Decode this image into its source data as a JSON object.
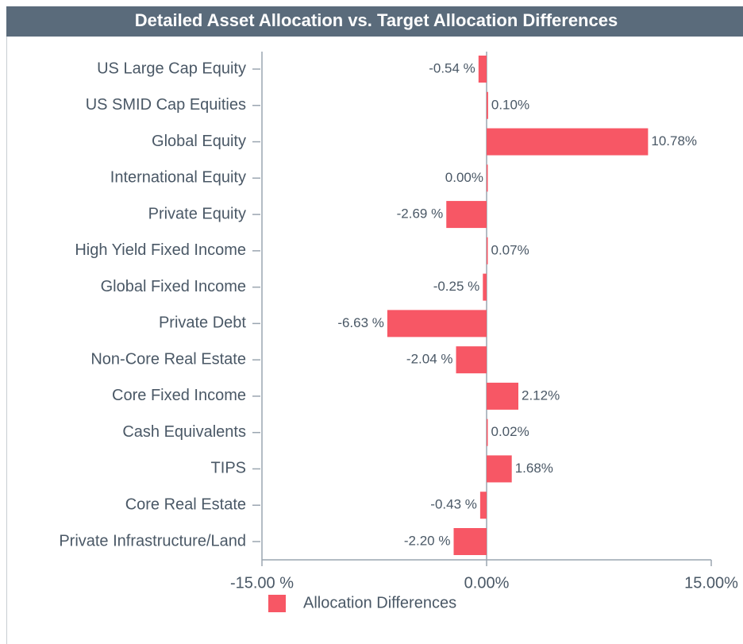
{
  "chart_data": {
    "type": "bar",
    "orientation": "horizontal",
    "title": "Detailed Asset Allocation vs. Target Allocation Differences",
    "categories": [
      "US Large Cap Equity",
      "US SMID Cap Equities",
      "Global Equity",
      "International Equity",
      "Private Equity",
      "High Yield Fixed Income",
      "Global Fixed Income",
      "Private Debt",
      "Non-Core Real Estate",
      "Core Fixed Income",
      "Cash Equivalents",
      "TIPS",
      "Core Real Estate",
      "Private Infrastructure/Land"
    ],
    "series": [
      {
        "name": "Allocation Differences",
        "color": "#f75765",
        "values": [
          -0.54,
          0.1,
          10.78,
          0.0,
          -2.69,
          0.07,
          -0.25,
          -6.63,
          -2.04,
          2.12,
          0.02,
          1.68,
          -0.43,
          -2.2
        ],
        "value_labels": [
          "-0.54 %",
          "0.10%",
          "10.78%",
          "0.00%",
          "-2.69 %",
          "0.07%",
          "-0.25 %",
          "-6.63 %",
          "-2.04 %",
          "2.12%",
          "0.02%",
          "1.68%",
          "-0.43 %",
          "-2.20 %"
        ]
      }
    ],
    "xlim": [
      -15,
      15
    ],
    "xticks": [
      {
        "value": -15,
        "label": "-15.00 %"
      },
      {
        "value": 0,
        "label": "0.00%"
      },
      {
        "value": 15,
        "label": "15.00%"
      }
    ],
    "legend": "bottom"
  }
}
